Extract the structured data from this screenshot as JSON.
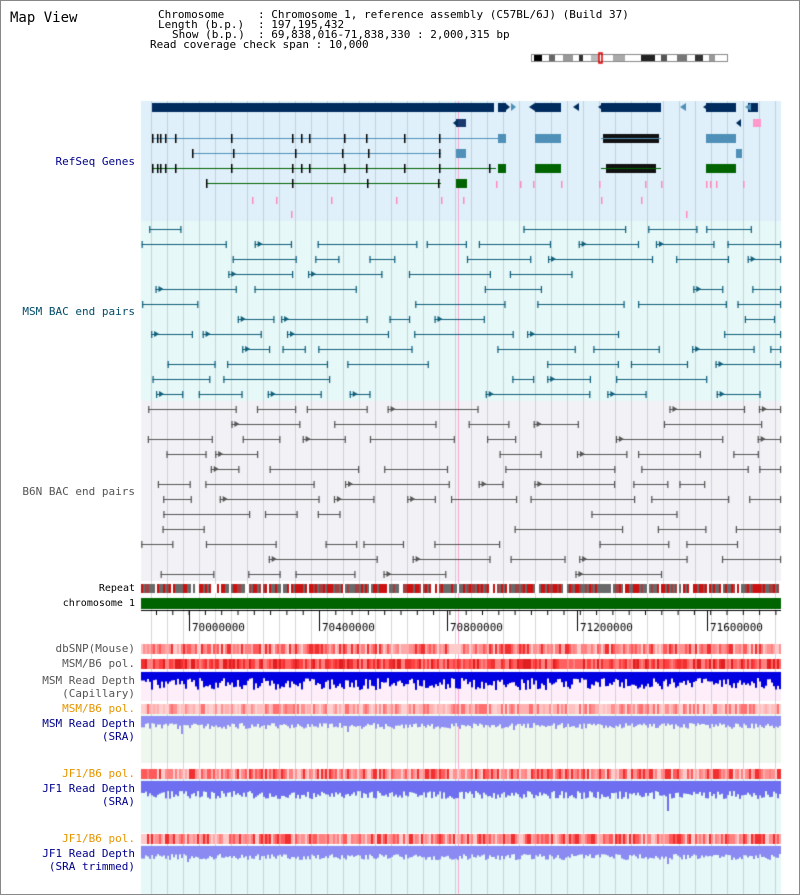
{
  "title": "Map View",
  "info": {
    "chromosome_label": "Chromosome",
    "chromosome_value": "Chromosome 1, reference assembly (C57BL/6J) (Build 37)",
    "length_label": "Length (b.p.)",
    "length_value": "197,195,432",
    "show_label": "Show (b.p.)",
    "show_value": "69,838,016-71,838,330 : 2,000,315 bp",
    "coverage_label": "Read coverage check span",
    "coverage_value": "10,000"
  },
  "tracks": {
    "refseq": "RefSeq Genes",
    "msm_bac": "MSM BAC end pairs",
    "b6n_bac": "B6N BAC end pairs",
    "repeat": "Repeat",
    "chromosome": "chromosome 1",
    "dbsnp": "dbSNP(Mouse)",
    "msm_b6_pol": "MSM/B6 pol.",
    "msm_depth_cap_1": "MSM Read Depth",
    "msm_depth_cap_2": "(Capillary)",
    "msm_b6_pol_sra": "MSM/B6 pol.",
    "msm_depth_sra_1": "MSM Read Depth",
    "msm_depth_sra_2": "(SRA)",
    "jf1_b6_pol": "JF1/B6 pol.",
    "jf1_depth_sra_1": "JF1 Read Depth",
    "jf1_depth_sra_2": "(SRA)",
    "jf1_b6_pol_2": "JF1/B6 pol.",
    "jf1_depth_trim_1": "JF1 Read Depth",
    "jf1_depth_trim_2": "(SRA trimmed)"
  },
  "ruler": {
    "ticks": [
      "70000000",
      "70400000",
      "70800000",
      "71200000",
      "71600000"
    ]
  },
  "colors": {
    "refseq_bg": "#dff0fa",
    "msm_bg": "#e6f8f8",
    "b6n_bg": "#f2f2f6",
    "blue_label": "#00008b",
    "msm_label": "#004c6a",
    "b6n_label": "#555555",
    "orange_label": "#e69500",
    "gene_dark": "#002b5e",
    "gene_teal": "#4f90b8",
    "gene_green": "#006400",
    "msm_pair": "#0f5f7a",
    "b6n_pair": "#555555",
    "chrom_bar": "#006400",
    "depth_blue": "#0000e0",
    "depth_light": "#7a7af0"
  }
}
